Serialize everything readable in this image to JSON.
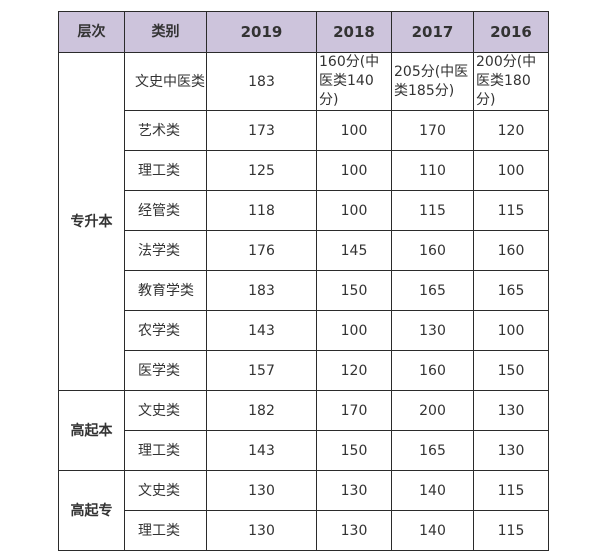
{
  "table": {
    "headers": [
      "层次",
      "类别",
      "2019",
      "2018",
      "2017",
      "2016"
    ],
    "groups": [
      {
        "level": "专升本",
        "rows": [
          {
            "category": "文史中医类",
            "values": [
              "183",
              "160分(中医类140分)",
              "205分(中医类185分)",
              "200分(中医类180分)"
            ]
          },
          {
            "category": "艺术类",
            "values": [
              "173",
              "100",
              "170",
              "120"
            ]
          },
          {
            "category": "理工类",
            "values": [
              "125",
              "100",
              "110",
              "100"
            ]
          },
          {
            "category": "经管类",
            "values": [
              "118",
              "100",
              "115",
              "115"
            ]
          },
          {
            "category": "法学类",
            "values": [
              "176",
              "145",
              "160",
              "160"
            ]
          },
          {
            "category": "教育学类",
            "values": [
              "183",
              "150",
              "165",
              "165"
            ]
          },
          {
            "category": "农学类",
            "values": [
              "143",
              "100",
              "130",
              "100"
            ]
          },
          {
            "category": "医学类",
            "values": [
              "157",
              "120",
              "160",
              "150"
            ]
          }
        ]
      },
      {
        "level": "高起本",
        "rows": [
          {
            "category": "文史类",
            "values": [
              "182",
              "170",
              "200",
              "130"
            ]
          },
          {
            "category": "理工类",
            "values": [
              "143",
              "150",
              "165",
              "130"
            ]
          }
        ]
      },
      {
        "level": "高起专",
        "rows": [
          {
            "category": "文史类",
            "values": [
              "130",
              "130",
              "140",
              "115"
            ]
          },
          {
            "category": "理工类",
            "values": [
              "130",
              "130",
              "140",
              "115"
            ]
          }
        ]
      }
    ]
  },
  "colors": {
    "header_bg": "#cdc4dc",
    "border": "#2b2b2b",
    "text": "#333333"
  }
}
